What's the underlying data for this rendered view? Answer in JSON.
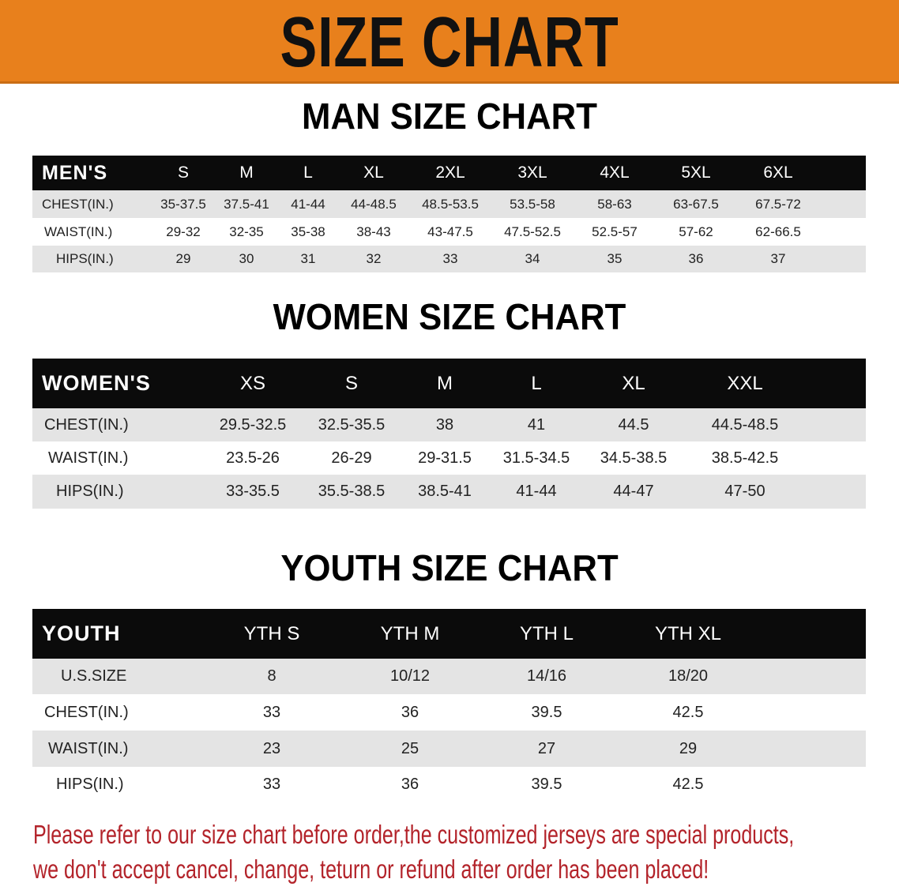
{
  "banner": {
    "title": "SIZE CHART",
    "color": "#e8801c"
  },
  "men": {
    "title": "MAN SIZE CHART",
    "header": [
      "MEN'S",
      "S",
      "M",
      "L",
      "XL",
      "2XL",
      "3XL",
      "4XL",
      "5XL",
      "6XL"
    ],
    "rows": [
      [
        "CHEST(IN.)",
        "35-37.5",
        "37.5-41",
        "41-44",
        "44-48.5",
        "48.5-53.5",
        "53.5-58",
        "58-63",
        "63-67.5",
        "67.5-72"
      ],
      [
        "WAIST(IN.)",
        "29-32",
        "32-35",
        "35-38",
        "38-43",
        "43-47.5",
        "47.5-52.5",
        "52.5-57",
        "57-62",
        "62-66.5"
      ],
      [
        "HIPS(IN.)",
        "29",
        "30",
        "31",
        "32",
        "33",
        "34",
        "35",
        "36",
        "37"
      ]
    ]
  },
  "women": {
    "title": "WOMEN SIZE CHART",
    "header": [
      "WOMEN'S",
      "XS",
      "S",
      "M",
      "L",
      "XL",
      "XXL"
    ],
    "rows": [
      [
        "CHEST(IN.)",
        "29.5-32.5",
        "32.5-35.5",
        "38",
        "41",
        "44.5",
        "44.5-48.5"
      ],
      [
        "WAIST(IN.)",
        "23.5-26",
        "26-29",
        "29-31.5",
        "31.5-34.5",
        "34.5-38.5",
        "38.5-42.5"
      ],
      [
        "HIPS(IN.)",
        "33-35.5",
        "35.5-38.5",
        "38.5-41",
        "41-44",
        "44-47",
        "47-50"
      ]
    ]
  },
  "youth": {
    "title": "YOUTH SIZE CHART",
    "header": [
      "YOUTH",
      "YTH S",
      "YTH M",
      "YTH L",
      "YTH XL"
    ],
    "rows": [
      [
        "U.S.SIZE",
        "8",
        "10/12",
        "14/16",
        "18/20"
      ],
      [
        "CHEST(IN.)",
        "33",
        "36",
        "39.5",
        "42.5"
      ],
      [
        "WAIST(IN.)",
        "23",
        "25",
        "27",
        "29"
      ],
      [
        "HIPS(IN.)",
        "33",
        "36",
        "39.5",
        "42.5"
      ]
    ]
  },
  "notice": {
    "line1": "Please refer to our size chart before order,the customized jerseys are special products,",
    "line2": "we don't accept cancel, change, teturn or refund after order has been placed!",
    "color": "#b3232a"
  }
}
